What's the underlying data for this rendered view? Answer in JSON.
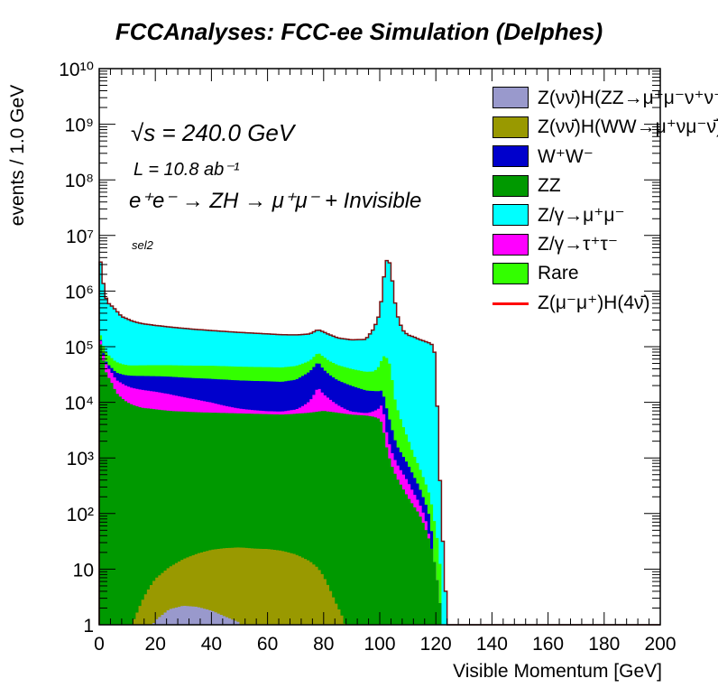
{
  "title": "FCCAnalyses: FCC-ee Simulation (Delphes)",
  "annotations": {
    "sqrt_s": "√s = 240.0 GeV",
    "luminosity": "L = 10.8 ab⁻¹",
    "process": "e⁺e⁻ → ZH → μ⁺μ⁻ + Invisible",
    "selection": "sel2"
  },
  "chart_data": {
    "type": "area",
    "stacked": true,
    "log_y": true,
    "xlabel": "Visible Momentum [GeV]",
    "ylabel": "events / 1.0 GeV",
    "xlim": [
      0,
      200
    ],
    "ylim": [
      1,
      10000000000
    ],
    "x_ticks": [
      "0",
      "20",
      "40",
      "60",
      "80",
      "100",
      "120",
      "140",
      "160",
      "180",
      "200"
    ],
    "y_ticks": [
      "1",
      "10",
      "10²",
      "10³",
      "10⁴",
      "10⁵",
      "10⁶",
      "10⁷",
      "10⁸",
      "10⁹",
      "10¹⁰"
    ],
    "legend_position": "top-right",
    "x": [
      0,
      1,
      2,
      3,
      4,
      5,
      6,
      8,
      10,
      12,
      15,
      20,
      25,
      30,
      35,
      40,
      45,
      50,
      55,
      60,
      65,
      70,
      75,
      78,
      80,
      82,
      85,
      90,
      95,
      98,
      100,
      101,
      102,
      103,
      104,
      105,
      106,
      108,
      110,
      112,
      114,
      116,
      118,
      119,
      120,
      121,
      122,
      123,
      124
    ],
    "series": [
      {
        "name": "Z(νν̄)H(ZZ→μ⁺μ⁻ν⁺ν⁻)",
        "color": "#9999cc",
        "values": [
          0,
          0,
          0,
          0,
          0,
          0,
          0,
          0,
          0,
          0,
          0,
          1.2,
          1.9,
          2.2,
          2.1,
          1.8,
          1.4,
          1.1,
          0,
          0,
          0,
          0,
          0,
          0,
          0,
          0,
          0,
          0,
          0,
          0,
          0,
          0,
          0,
          0,
          0,
          0,
          0,
          0,
          0,
          0,
          0,
          0,
          0,
          0,
          0,
          0,
          0,
          0,
          0
        ]
      },
      {
        "name": "Z(νν̄)H(WW→μ⁺νμ⁻ν̄)",
        "color": "#999900",
        "values": [
          0,
          0,
          0,
          0,
          0,
          0,
          0,
          0,
          0,
          1.1,
          2.5,
          5.5,
          9,
          13,
          17,
          20.5,
          22.5,
          23.5,
          23.5,
          23,
          21.5,
          18.5,
          14,
          10.5,
          7.5,
          4.6,
          2.1,
          0,
          0,
          0,
          0,
          0,
          0,
          0,
          0,
          0,
          0,
          0,
          0,
          0,
          0,
          0,
          0,
          0,
          0,
          0,
          0,
          0,
          0
        ]
      },
      {
        "name": "ZZ",
        "color": "#009900",
        "values": [
          150000,
          80000,
          40000,
          30000,
          25000,
          20000,
          15000,
          12000,
          10000,
          9000,
          8000,
          7500,
          7000,
          6800,
          6600,
          6500,
          6400,
          6300,
          6200,
          6100,
          6000,
          6200,
          6500,
          6800,
          7000,
          6800,
          6500,
          6000,
          5800,
          5500,
          5000,
          4000,
          2000,
          1200,
          800,
          600,
          450,
          300,
          200,
          140,
          100,
          60,
          30,
          18,
          10,
          4,
          1.5,
          0,
          0
        ]
      },
      {
        "name": "Z/γ→τ⁺τ⁻",
        "color": "#ff00ff",
        "values": [
          18000,
          16000,
          14000,
          13000,
          12000,
          11000,
          10500,
          10000,
          9500,
          9000,
          8800,
          8000,
          7000,
          5600,
          4500,
          3400,
          2200,
          1400,
          1000,
          800,
          800,
          1200,
          4000,
          12000,
          7000,
          4800,
          2500,
          800,
          600,
          1500,
          3000,
          6000,
          1800,
          1000,
          600,
          450,
          350,
          250,
          180,
          100,
          60,
          30,
          0,
          0,
          0,
          0,
          0,
          0,
          0
        ]
      },
      {
        "name": "W⁺W⁻",
        "color": "#0000cc",
        "values": [
          5000,
          5000,
          5000,
          6000,
          7000,
          8000,
          9000,
          10000,
          11000,
          12000,
          13000,
          14000,
          15000,
          15500,
          16000,
          16500,
          17000,
          17000,
          17000,
          17000,
          16500,
          18000,
          25000,
          35000,
          25000,
          20000,
          16000,
          13000,
          10000,
          9000,
          8000,
          7000,
          6000,
          4000,
          2500,
          1500,
          900,
          600,
          400,
          250,
          150,
          80,
          50,
          0,
          0,
          0,
          0,
          0,
          0
        ]
      },
      {
        "name": "Rare",
        "color": "#33ff00",
        "values": [
          30000,
          28000,
          26000,
          24000,
          22000,
          20000,
          19000,
          17000,
          16000,
          16000,
          16500,
          17000,
          17500,
          18000,
          18500,
          19000,
          19000,
          19000,
          19000,
          19000,
          19000,
          19500,
          20000,
          25000,
          27000,
          24000,
          22000,
          20000,
          19000,
          20000,
          30000,
          50000,
          60000,
          50000,
          40000,
          12000,
          7000,
          3000,
          1500,
          700,
          400,
          220,
          120,
          80,
          45,
          20,
          0,
          0,
          0
        ]
      },
      {
        "name": "Z/γ→μ⁺μ⁻",
        "color": "#00ffff",
        "values": [
          5000000,
          2000000,
          800000,
          550000,
          500000,
          450000,
          400000,
          300000,
          270000,
          240000,
          215000,
          195000,
          180000,
          168000,
          158000,
          150000,
          143000,
          137000,
          132000,
          127000,
          122000,
          118000,
          114000,
          125000,
          118000,
          110000,
          97000,
          93000,
          100000,
          180000,
          350000,
          1000000,
          3000000,
          4000000,
          2500000,
          900000,
          400000,
          200000,
          160000,
          150000,
          135000,
          125000,
          115000,
          105000,
          60000,
          1200,
          120,
          8,
          0
        ]
      },
      {
        "name": "Z(μ⁻μ⁺)H(4ν̄)",
        "color": "#ff0000",
        "values": [
          0,
          0,
          0,
          0,
          0,
          0,
          0,
          0,
          0,
          0,
          0,
          0,
          0,
          0,
          0,
          0,
          0,
          0,
          0,
          0,
          0,
          0,
          0,
          0,
          0,
          0,
          0,
          0,
          0,
          0,
          0,
          0,
          0,
          0,
          0,
          0,
          0,
          0,
          0,
          0,
          0,
          0,
          0,
          0,
          0,
          0,
          0,
          0,
          0
        ]
      }
    ]
  }
}
